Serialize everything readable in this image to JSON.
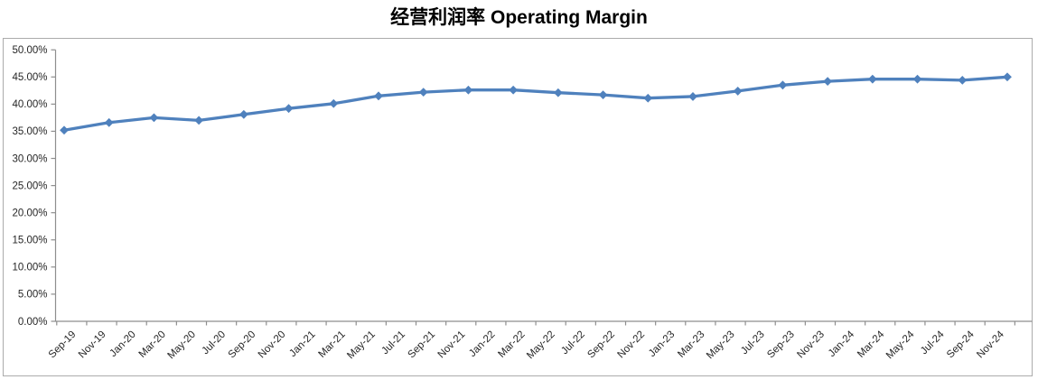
{
  "title": "经营利润率 Operating Margin",
  "chart_data": {
    "type": "line",
    "title": "经营利润率 Operating Margin",
    "series": [
      {
        "name": "经营利润率 Operating Margin",
        "x": [
          "Sep-19",
          "Dec-19",
          "Mar-20",
          "Jun-20",
          "Sep-20",
          "Dec-20",
          "Mar-21",
          "Jun-21",
          "Sep-21",
          "Dec-21",
          "Mar-22",
          "Jun-22",
          "Sep-22",
          "Dec-22",
          "Mar-23",
          "Jun-23",
          "Sep-23",
          "Dec-23",
          "Mar-24",
          "Jun-24",
          "Sep-24",
          "Dec-24"
        ],
        "values": [
          35.2,
          36.6,
          37.5,
          37.0,
          38.1,
          39.2,
          40.1,
          41.5,
          42.2,
          42.6,
          42.6,
          42.1,
          41.7,
          41.1,
          41.4,
          42.4,
          43.5,
          44.2,
          44.6,
          44.6,
          44.4,
          45.0
        ]
      }
    ],
    "x_axis": {
      "tick_labels": [
        "Sep-19",
        "Nov-19",
        "Jan-20",
        "Mar-20",
        "May-20",
        "Jul-20",
        "Sep-20",
        "Nov-20",
        "Jan-21",
        "Mar-21",
        "May-21",
        "Jul-21",
        "Sep-21",
        "Nov-21",
        "Jan-22",
        "Mar-22",
        "May-22",
        "Jul-22",
        "Sep-22",
        "Nov-22",
        "Jan-23",
        "Mar-23",
        "May-23",
        "Jul-23",
        "Sep-23",
        "Nov-23",
        "Jan-24",
        "Mar-24",
        "May-24",
        "Jul-24",
        "Sep-24",
        "Nov-24"
      ],
      "label_rotation_deg": -45,
      "months_per_label": 2,
      "months_per_data_point": 3
    },
    "y_axis": {
      "tick_labels": [
        "0.00%",
        "5.00%",
        "10.00%",
        "15.00%",
        "20.00%",
        "25.00%",
        "30.00%",
        "35.00%",
        "40.00%",
        "45.00%",
        "50.00%"
      ],
      "min": 0,
      "max": 50,
      "step": 5,
      "unit": "%"
    },
    "ylim": [
      0,
      50
    ],
    "grid": false,
    "legend": false,
    "line_color": "#4F81BD",
    "marker": "diamond",
    "background_color": "#FFFFFF",
    "border_color": "#ABABAB",
    "axis_color": "#8E8E8E",
    "text_color": "#262626"
  }
}
